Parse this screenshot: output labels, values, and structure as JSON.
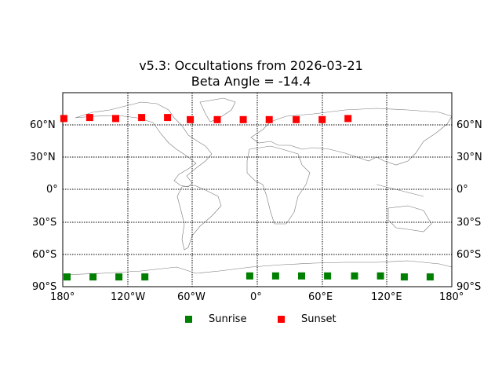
{
  "chart_data": {
    "type": "scatter",
    "title": "v5.3: Occultations from 2026-03-21",
    "subtitle": "Beta Angle = -14.4",
    "xlabel": "",
    "ylabel": "",
    "xlim": [
      -180,
      180
    ],
    "ylim": [
      -90,
      90
    ],
    "grid": true,
    "projection": "cylindrical world map (coastlines and country borders)",
    "x_ticks": [
      "180°",
      "120°W",
      "60°W",
      "0°",
      "60°E",
      "120°E",
      "180°"
    ],
    "y_ticks_left": [
      "90°S",
      "60°S",
      "30°S",
      "0°",
      "30°N",
      "60°N"
    ],
    "y_ticks_right": [
      "90°S",
      "60°S",
      "30°S",
      "0°",
      "30°N",
      "60°N"
    ],
    "legend_position": "bottom center, below plot",
    "series": [
      {
        "name": "Sunrise",
        "color": "#008000",
        "marker": "square",
        "points": [
          {
            "lon": -176,
            "lat": -81
          },
          {
            "lon": -152,
            "lat": -81
          },
          {
            "lon": -128,
            "lat": -81
          },
          {
            "lon": -104,
            "lat": -81
          },
          {
            "lon": -7,
            "lat": -80
          },
          {
            "lon": 17,
            "lat": -80
          },
          {
            "lon": 41,
            "lat": -80
          },
          {
            "lon": 65,
            "lat": -80
          },
          {
            "lon": 90,
            "lat": -80
          },
          {
            "lon": 114,
            "lat": -80
          },
          {
            "lon": 136,
            "lat": -81
          },
          {
            "lon": 160,
            "lat": -81
          }
        ]
      },
      {
        "name": "Sunset",
        "color": "#ff0000",
        "marker": "square",
        "points": [
          {
            "lon": -179,
            "lat": 66
          },
          {
            "lon": -155,
            "lat": 67
          },
          {
            "lon": -131,
            "lat": 66
          },
          {
            "lon": -107,
            "lat": 67
          },
          {
            "lon": -83,
            "lat": 67
          },
          {
            "lon": -62,
            "lat": 65
          },
          {
            "lon": -37,
            "lat": 65
          },
          {
            "lon": -13,
            "lat": 65
          },
          {
            "lon": 11,
            "lat": 65
          },
          {
            "lon": 36,
            "lat": 65
          },
          {
            "lon": 60,
            "lat": 65
          },
          {
            "lon": 84,
            "lat": 66
          }
        ]
      }
    ]
  },
  "legend": {
    "sunrise_label": "Sunrise",
    "sunset_label": "Sunset"
  }
}
